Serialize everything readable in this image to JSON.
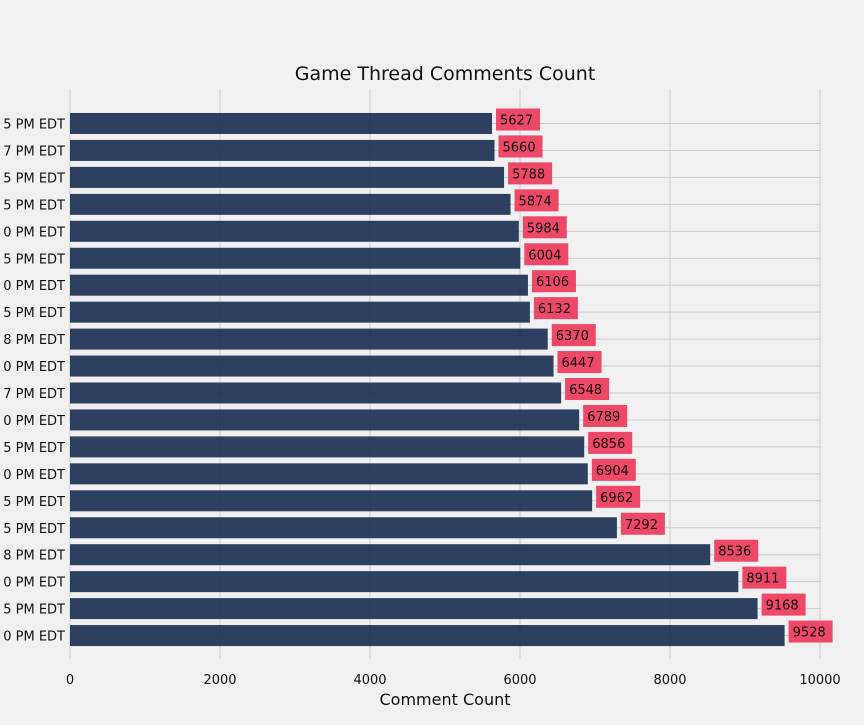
{
  "chart_data": {
    "type": "bar",
    "orientation": "horizontal",
    "title": "Game Thread Comments Count",
    "xlabel": "Comment Count",
    "ylabel": "",
    "xlim": [
      0,
      10000
    ],
    "x_ticks": [
      0,
      2000,
      4000,
      6000,
      8000,
      10000
    ],
    "categories": [
      "5 PM EDT",
      "7 PM EDT",
      "5 PM EDT",
      "5 PM EDT",
      "0 PM EDT",
      "5 PM EDT",
      "0 PM EDT",
      "5 PM EDT",
      "8 PM EDT",
      "0 PM EDT",
      "7 PM EDT",
      "0 PM EDT",
      "5 PM EDT",
      "0 PM EDT",
      "5 PM EDT",
      "5 PM EDT",
      "8 PM EDT",
      "0 PM EDT",
      "5 PM EDT",
      "0 PM EDT"
    ],
    "values": [
      5627,
      5660,
      5788,
      5874,
      5984,
      6004,
      6106,
      6132,
      6370,
      6447,
      6548,
      6789,
      6856,
      6904,
      6962,
      7292,
      8536,
      8911,
      9168,
      9528
    ],
    "grid": true,
    "colors": {
      "bar": "#1c3154",
      "label_box": "#ec3e5f",
      "background": "#f0f0f0",
      "grid": "#cbcbcb"
    }
  }
}
